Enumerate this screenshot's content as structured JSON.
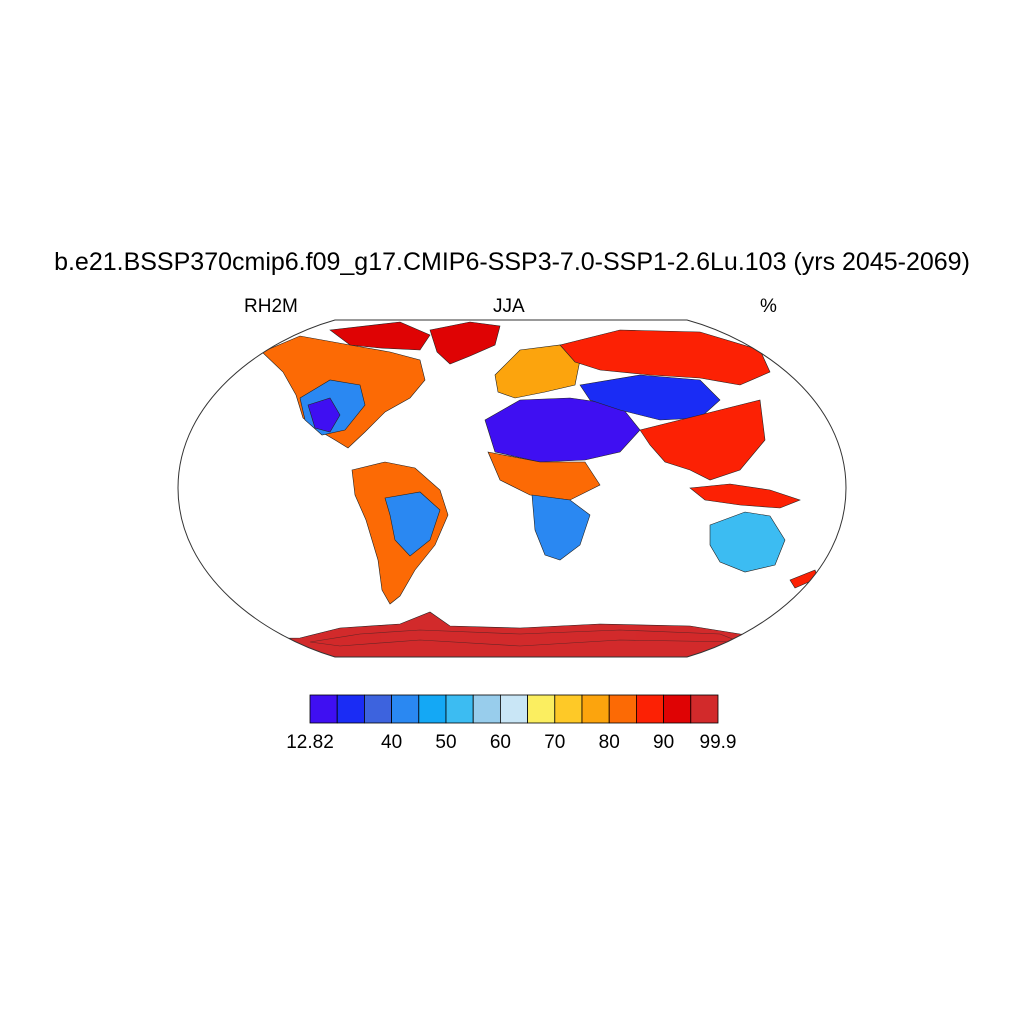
{
  "title": "b.e21.BSSP370cmip6.f09_g17.CMIP6-SSP3-7.0-SSP1-2.6Lu.103 (yrs 2045-2069)",
  "left_label": "RH2M",
  "center_label": "JJA",
  "right_label": "%",
  "colorbar": {
    "colors": [
      "#3f0ff2",
      "#1a2cf5",
      "#3d63de",
      "#2a88f2",
      "#14a8f5",
      "#3cbcf2",
      "#98cdec",
      "#c9e6f6",
      "#fbee60",
      "#fec927",
      "#fca40d",
      "#fc6a05",
      "#fc2104",
      "#df0304",
      "#d22a2b"
    ],
    "tick_labels": [
      "12.82",
      "40",
      "50",
      "60",
      "70",
      "80",
      "90",
      "99.9"
    ],
    "tick_boundaries": [
      0,
      3,
      5,
      7,
      9,
      11,
      13,
      15
    ]
  },
  "map": {
    "projection": "Robinson",
    "ocean_color": "#ffffff",
    "regions": [
      {
        "name": "greenland",
        "color": "#df0304"
      },
      {
        "name": "canada-arctic",
        "color": "#df0304"
      },
      {
        "name": "north-america",
        "color": "#fc6a05"
      },
      {
        "name": "us-west-dry",
        "color": "#2a88f2"
      },
      {
        "name": "mexico-dry",
        "color": "#3f0ff2"
      },
      {
        "name": "south-america",
        "color": "#fc6a05"
      },
      {
        "name": "brazil-dry",
        "color": "#2a88f2"
      },
      {
        "name": "europe",
        "color": "#fca40d"
      },
      {
        "name": "siberia",
        "color": "#fc2104"
      },
      {
        "name": "sahara-arabia",
        "color": "#3f0ff2"
      },
      {
        "name": "sahel",
        "color": "#fc6a05"
      },
      {
        "name": "southern-africa",
        "color": "#2a88f2"
      },
      {
        "name": "central-asia",
        "color": "#1a2cf5"
      },
      {
        "name": "south-east-asia",
        "color": "#fc2104"
      },
      {
        "name": "australia",
        "color": "#3cbcf2"
      },
      {
        "name": "antarctica",
        "color": "#d22a2b"
      }
    ]
  }
}
